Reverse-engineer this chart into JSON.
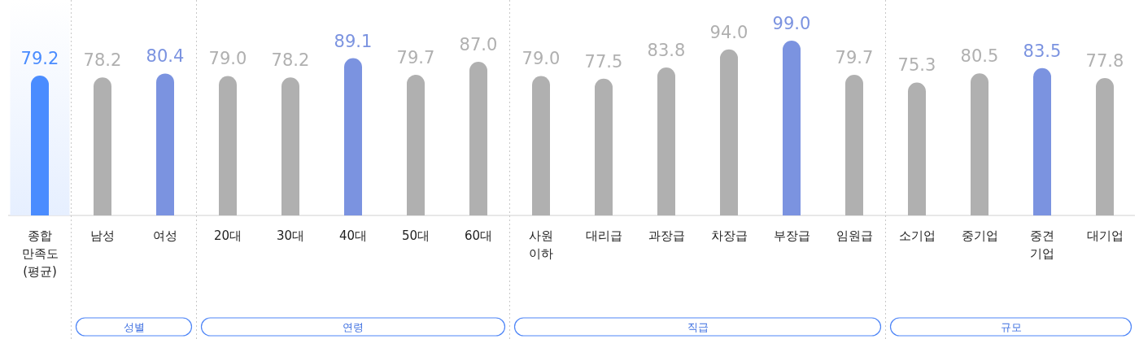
{
  "chart_data": [
    {
      "type": "bar",
      "categories": [
        "종합\n만족도\n(평균)"
      ],
      "values": [
        79.2
      ],
      "colors": [
        "#4a8cff"
      ],
      "value_labels": [
        "79.2"
      ],
      "bands": [
        {
          "axis": "x",
          "from": "종합\n만족도\n(평균)",
          "to": "종합\n만족도\n(평균)",
          "color": "#e6efff"
        }
      ]
    },
    {
      "type": "bar",
      "title": "성별",
      "categories": [
        "남성",
        "여성"
      ],
      "values": [
        78.2,
        80.4
      ],
      "colors": [
        "#b0b0b0",
        "#7b93e0"
      ],
      "value_labels": [
        "78.2",
        "80.4"
      ]
    },
    {
      "type": "bar",
      "title": "연령",
      "categories": [
        "20대",
        "30대",
        "40대",
        "50대",
        "60대"
      ],
      "values": [
        79.0,
        78.2,
        89.1,
        79.7,
        87.0
      ],
      "colors": [
        "#b0b0b0",
        "#b0b0b0",
        "#7b93e0",
        "#b0b0b0",
        "#b0b0b0"
      ],
      "value_labels": [
        "79.0",
        "78.2",
        "89.1",
        "79.7",
        "87.0"
      ]
    },
    {
      "type": "bar",
      "title": "직급",
      "categories": [
        "사원\n이하",
        "대리급",
        "과장급",
        "차장급",
        "부장급",
        "임원급"
      ],
      "values": [
        79.0,
        77.5,
        83.8,
        94.0,
        99.0,
        79.7
      ],
      "colors": [
        "#b0b0b0",
        "#b0b0b0",
        "#b0b0b0",
        "#b0b0b0",
        "#7b93e0",
        "#b0b0b0"
      ],
      "value_labels": [
        "79.0",
        "77.5",
        "83.8",
        "94.0",
        "99.0",
        "79.7"
      ]
    },
    {
      "type": "bar",
      "title": "규모",
      "categories": [
        "소기업",
        "중기업",
        "중견\n기업",
        "대기업"
      ],
      "values": [
        75.3,
        80.5,
        83.5,
        77.8
      ],
      "colors": [
        "#b0b0b0",
        "#b0b0b0",
        "#7b93e0",
        "#b0b0b0"
      ],
      "value_labels": [
        "75.3",
        "80.5",
        "83.5",
        "77.8"
      ]
    }
  ]
}
